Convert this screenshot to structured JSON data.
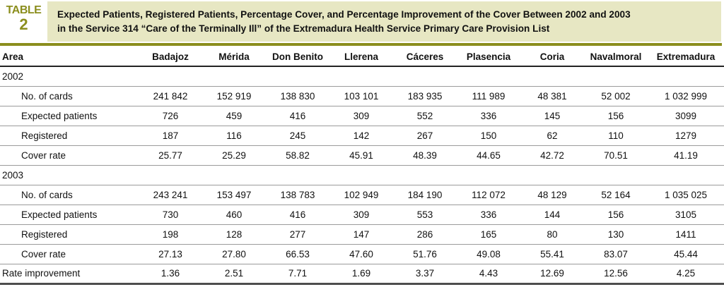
{
  "badge": {
    "label": "TABLE",
    "number": "2"
  },
  "title": {
    "line1": "Expected Patients, Registered Patients, Percentage Cover, and Percentage Improvement of the Cover Between 2002 and 2003",
    "line2": "in the Service 314 “Care of the Terminally Ill” of the Extremadura Health Service Primary Care Provision List"
  },
  "colors": {
    "accent_olive": "#8b8e1d",
    "title_background": "#e7e7c3"
  },
  "table": {
    "columns": [
      "Area",
      "Badajoz",
      "Mérida",
      "Don Benito",
      "Llerena",
      "Cáceres",
      "Plasencia",
      "Coria",
      "Navalmoral",
      "Extremadura"
    ],
    "sections": [
      {
        "label": "2002",
        "rows": [
          {
            "label": "No. of cards",
            "values": [
              "241 842",
              "152 919",
              "138 830",
              "103 101",
              "183 935",
              "111 989",
              "48 381",
              "52 002",
              "1 032 999"
            ]
          },
          {
            "label": "Expected patients",
            "values": [
              "726",
              "459",
              "416",
              "309",
              "552",
              "336",
              "145",
              "156",
              "3099"
            ]
          },
          {
            "label": "Registered",
            "values": [
              "187",
              "116",
              "245",
              "142",
              "267",
              "150",
              "62",
              "110",
              "1279"
            ]
          },
          {
            "label": "Cover rate",
            "values": [
              "25.77",
              "25.29",
              "58.82",
              "45.91",
              "48.39",
              "44.65",
              "42.72",
              "70.51",
              "41.19"
            ]
          }
        ]
      },
      {
        "label": "2003",
        "rows": [
          {
            "label": "No. of cards",
            "values": [
              "243 241",
              "153 497",
              "138 783",
              "102 949",
              "184 190",
              "112 072",
              "48 129",
              "52 164",
              "1 035 025"
            ]
          },
          {
            "label": "Expected patients",
            "values": [
              "730",
              "460",
              "416",
              "309",
              "553",
              "336",
              "144",
              "156",
              "3105"
            ]
          },
          {
            "label": "Registered",
            "values": [
              "198",
              "128",
              "277",
              "147",
              "286",
              "165",
              "80",
              "130",
              "1411"
            ]
          },
          {
            "label": "Cover rate",
            "values": [
              "27.13",
              "27.80",
              "66.53",
              "47.60",
              "51.76",
              "49.08",
              "55.41",
              "83.07",
              "45.44"
            ]
          }
        ]
      }
    ],
    "footer_row": {
      "label": "Rate improvement",
      "values": [
        "1.36",
        "2.51",
        "7.71",
        "1.69",
        "3.37",
        "4.43",
        "12.69",
        "12.56",
        "4.25"
      ]
    }
  }
}
